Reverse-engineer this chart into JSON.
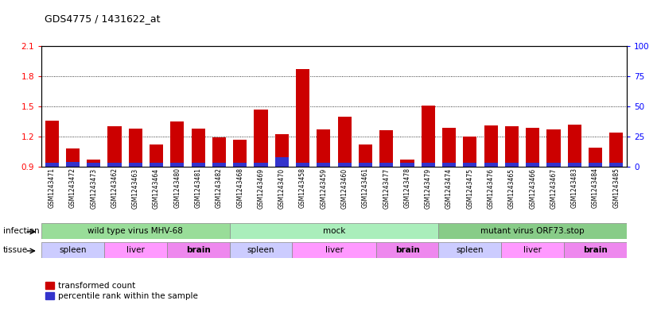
{
  "title": "GDS4775 / 1431622_at",
  "samples": [
    "GSM1243471",
    "GSM1243472",
    "GSM1243473",
    "GSM1243462",
    "GSM1243463",
    "GSM1243464",
    "GSM1243480",
    "GSM1243481",
    "GSM1243482",
    "GSM1243468",
    "GSM1243469",
    "GSM1243470",
    "GSM1243458",
    "GSM1243459",
    "GSM1243460",
    "GSM1243461",
    "GSM1243477",
    "GSM1243478",
    "GSM1243479",
    "GSM1243474",
    "GSM1243475",
    "GSM1243476",
    "GSM1243465",
    "GSM1243466",
    "GSM1243467",
    "GSM1243483",
    "GSM1243484",
    "GSM1243485"
  ],
  "transformed_count": [
    1.36,
    1.08,
    0.97,
    1.3,
    1.28,
    1.12,
    1.35,
    1.28,
    1.19,
    1.17,
    1.47,
    1.22,
    1.87,
    1.27,
    1.4,
    1.12,
    1.26,
    0.97,
    1.51,
    1.29,
    1.2,
    1.31,
    1.3,
    1.29,
    1.27,
    1.32,
    1.09,
    1.24
  ],
  "percentile_rank": [
    3,
    4,
    3,
    3,
    3,
    3,
    3,
    3,
    3,
    3,
    3,
    8,
    3,
    3,
    3,
    3,
    3,
    3,
    3,
    3,
    3,
    3,
    3,
    3,
    3,
    3,
    3,
    3
  ],
  "ylim_left": [
    0.9,
    2.1
  ],
  "ylim_right": [
    0,
    100
  ],
  "yticks_left": [
    0.9,
    1.2,
    1.5,
    1.8,
    2.1
  ],
  "yticks_right": [
    0,
    25,
    50,
    75,
    100
  ],
  "bar_color_red": "#cc0000",
  "bar_color_blue": "#3333cc",
  "infection_groups": [
    {
      "label": "wild type virus MHV-68",
      "start": 0,
      "end": 9,
      "color": "#99dd99"
    },
    {
      "label": "mock",
      "start": 9,
      "end": 19,
      "color": "#aaeebb"
    },
    {
      "label": "mutant virus ORF73.stop",
      "start": 19,
      "end": 28,
      "color": "#88cc88"
    }
  ],
  "tissue_groups": [
    {
      "label": "spleen",
      "start": 0,
      "end": 3,
      "color": "#ccccff",
      "bold": false
    },
    {
      "label": "liver",
      "start": 3,
      "end": 6,
      "color": "#ff99ff",
      "bold": false
    },
    {
      "label": "brain",
      "start": 6,
      "end": 9,
      "color": "#ee88ee",
      "bold": true
    },
    {
      "label": "spleen",
      "start": 9,
      "end": 12,
      "color": "#ccccff",
      "bold": false
    },
    {
      "label": "liver",
      "start": 12,
      "end": 16,
      "color": "#ff99ff",
      "bold": false
    },
    {
      "label": "brain",
      "start": 16,
      "end": 19,
      "color": "#ee88ee",
      "bold": true
    },
    {
      "label": "spleen",
      "start": 19,
      "end": 22,
      "color": "#ccccff",
      "bold": false
    },
    {
      "label": "liver",
      "start": 22,
      "end": 25,
      "color": "#ff99ff",
      "bold": false
    },
    {
      "label": "brain",
      "start": 25,
      "end": 28,
      "color": "#ee88ee",
      "bold": true
    }
  ],
  "baseline": 0.9,
  "infection_label": "infection",
  "tissue_label": "tissue",
  "legend_items": [
    {
      "label": "transformed count",
      "color": "#cc0000"
    },
    {
      "label": "percentile rank within the sample",
      "color": "#3333cc"
    }
  ]
}
